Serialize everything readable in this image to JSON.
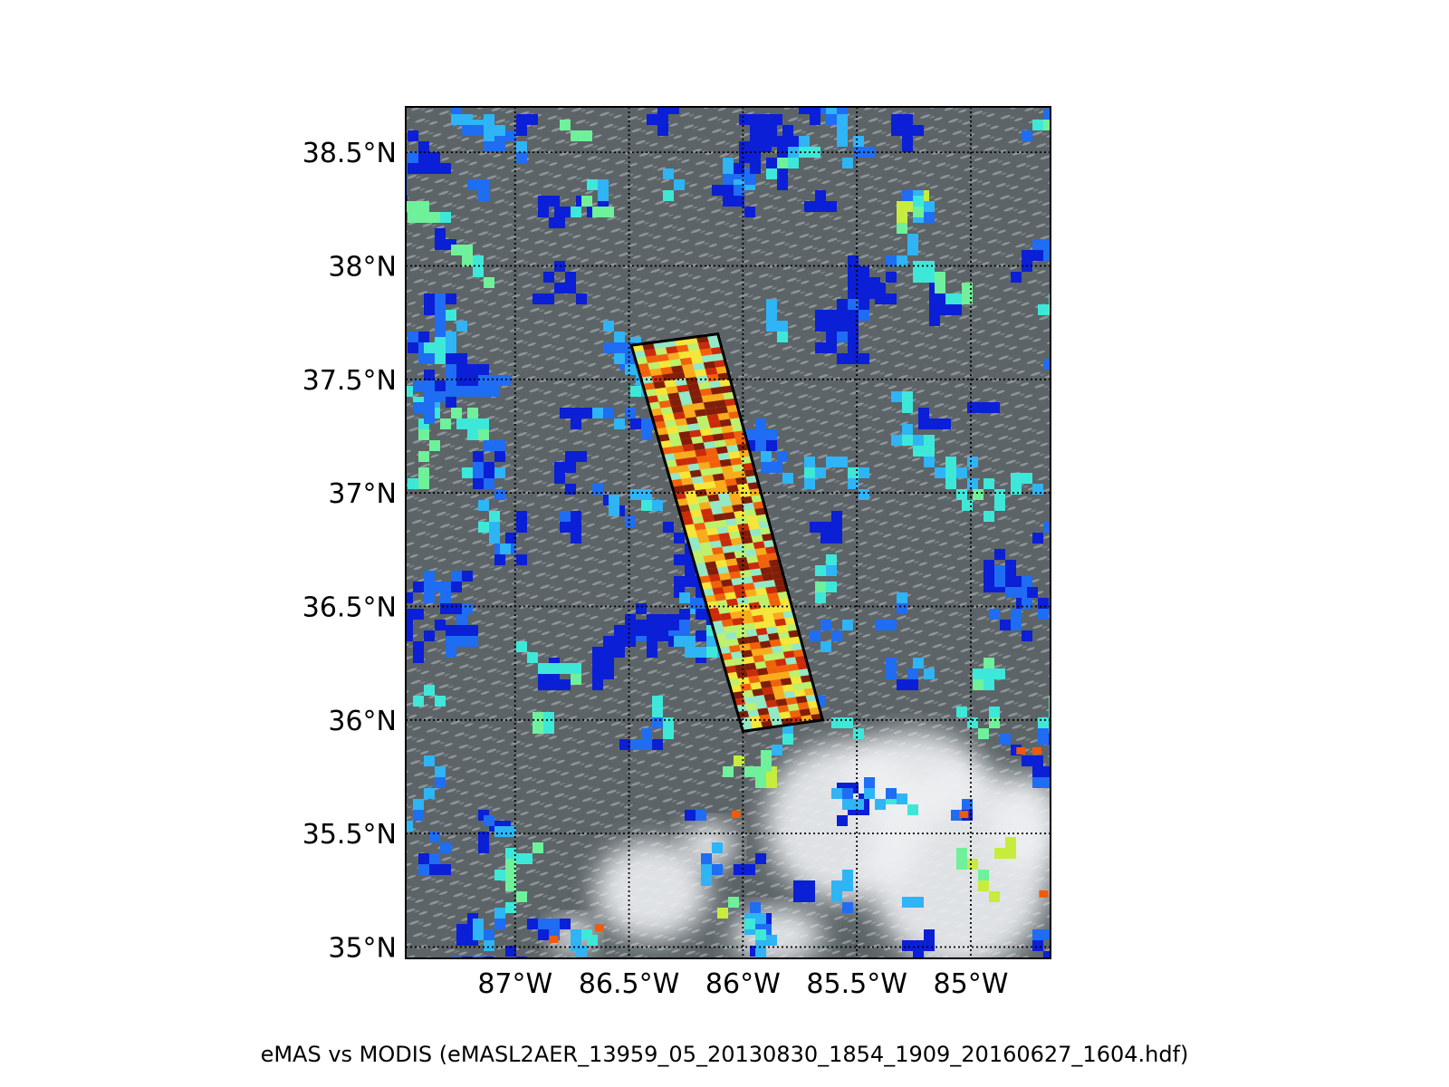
{
  "map": {
    "caption": "eMAS vs MODIS (eMASL2AER_13959_05_20130830_1854_1909_20160627_1604.hdf)",
    "lon_range": [
      -87.48,
      -84.65
    ],
    "lat_range": [
      34.95,
      38.7
    ],
    "lat_ticks": [
      {
        "value": 38.5,
        "label": "38.5°N"
      },
      {
        "value": 38.0,
        "label": "38°N"
      },
      {
        "value": 37.5,
        "label": "37.5°N"
      },
      {
        "value": 37.0,
        "label": "37°N"
      },
      {
        "value": 36.5,
        "label": "36.5°N"
      },
      {
        "value": 36.0,
        "label": "36°N"
      },
      {
        "value": 35.5,
        "label": "35.5°N"
      },
      {
        "value": 35.0,
        "label": "35°N"
      }
    ],
    "lon_ticks": [
      {
        "value": -87.0,
        "label": "87°W"
      },
      {
        "value": -86.5,
        "label": "86.5°W"
      },
      {
        "value": -86.0,
        "label": "86°W"
      },
      {
        "value": -85.5,
        "label": "85.5°W"
      },
      {
        "value": -85.0,
        "label": "85°W"
      }
    ],
    "gridlines": "dotted",
    "swath_corners_lonlat": [
      [
        -86.49,
        37.65
      ],
      [
        -86.11,
        37.7
      ],
      [
        -85.65,
        36.0
      ],
      [
        -86.0,
        35.95
      ]
    ],
    "colors": {
      "background": "#5c6468",
      "cloud": "#eef0f2",
      "modis_scale": [
        "#0a1fd6",
        "#1f6df2",
        "#2fb4f5",
        "#3ee8d8",
        "#6ff09a",
        "#c7ec3d"
      ],
      "emas_scale": [
        "#7a1206",
        "#c8200a",
        "#f05a0a",
        "#f8a81a",
        "#f6e63a",
        "#b8f070",
        "#8de8d0"
      ]
    }
  }
}
